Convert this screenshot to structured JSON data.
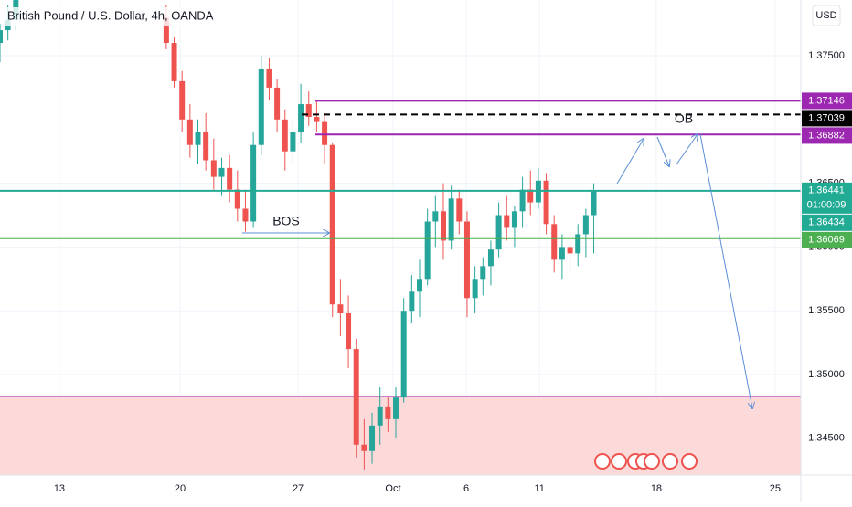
{
  "chart_data": {
    "type": "candlestick",
    "title": "British Pound / U.S. Dollar, 4h, OANDA",
    "currency": "USD",
    "annotations": [
      "BOS",
      "OB"
    ],
    "up_color": "#26a69a",
    "down_color": "#ef5350",
    "grid": true,
    "x": [
      0,
      2,
      4,
      42,
      44,
      46,
      48,
      50,
      52,
      54,
      56,
      58,
      60,
      62,
      64,
      66,
      68,
      70,
      72,
      74,
      76,
      78,
      80,
      82,
      84,
      86,
      88,
      90,
      92,
      94,
      96,
      98,
      100,
      102,
      104,
      106,
      108,
      110,
      112,
      114,
      116,
      118,
      120,
      122,
      124,
      126,
      128,
      130,
      132,
      134,
      136,
      138,
      140,
      142,
      144,
      146,
      148,
      150
    ],
    "open": [
      1.376,
      1.377,
      1.3778,
      1.378,
      1.376,
      1.373,
      1.37,
      1.368,
      1.369,
      1.3668,
      1.3655,
      1.3662,
      1.3645,
      1.363,
      1.362,
      1.368,
      1.374,
      1.3725,
      1.37,
      1.3675,
      1.369,
      1.3712,
      1.3702,
      1.3698,
      1.368,
      1.3555,
      1.3548,
      1.352,
      1.3445,
      1.344,
      1.346,
      1.3475,
      1.3465,
      1.3482,
      1.355,
      1.3565,
      1.3575,
      1.362,
      1.3628,
      1.3605,
      1.3638,
      1.362,
      1.356,
      1.3575,
      1.3585,
      1.3598,
      1.3625,
      1.3615,
      1.3628,
      1.3645,
      1.3635,
      1.3652,
      1.3618,
      1.359,
      1.36,
      1.3595,
      1.361,
      1.3625
    ],
    "high": [
      1.3775,
      1.379,
      1.38,
      1.379,
      1.3765,
      1.3738,
      1.3712,
      1.37,
      1.3705,
      1.3685,
      1.367,
      1.3672,
      1.366,
      1.3645,
      1.369,
      1.375,
      1.3748,
      1.3732,
      1.3708,
      1.37,
      1.3728,
      1.3722,
      1.3714,
      1.3705,
      1.3682,
      1.3575,
      1.3562,
      1.3528,
      1.3465,
      1.347,
      1.349,
      1.3482,
      1.349,
      1.356,
      1.3578,
      1.359,
      1.363,
      1.364,
      1.365,
      1.3648,
      1.3645,
      1.3628,
      1.3585,
      1.3592,
      1.3605,
      1.3635,
      1.364,
      1.3632,
      1.3655,
      1.366,
      1.3662,
      1.3658,
      1.3625,
      1.361,
      1.3612,
      1.3618,
      1.363,
      1.365
    ],
    "low": [
      1.3745,
      1.3762,
      1.377,
      1.3755,
      1.3725,
      1.369,
      1.367,
      1.3665,
      1.366,
      1.3645,
      1.364,
      1.3635,
      1.362,
      1.3612,
      1.3615,
      1.3672,
      1.3715,
      1.369,
      1.366,
      1.3665,
      1.3682,
      1.3695,
      1.369,
      1.3665,
      1.3545,
      1.353,
      1.3505,
      1.3435,
      1.3425,
      1.343,
      1.3445,
      1.3455,
      1.345,
      1.3478,
      1.354,
      1.3545,
      1.357,
      1.36,
      1.359,
      1.3598,
      1.361,
      1.3545,
      1.3548,
      1.3562,
      1.357,
      1.3592,
      1.3605,
      1.36,
      1.3615,
      1.3625,
      1.363,
      1.361,
      1.358,
      1.3575,
      1.358,
      1.3585,
      1.3592,
      1.3595
    ],
    "close": [
      1.377,
      1.3778,
      1.3795,
      1.376,
      1.373,
      1.37,
      1.368,
      1.369,
      1.3668,
      1.3655,
      1.3662,
      1.3645,
      1.363,
      1.362,
      1.368,
      1.374,
      1.3725,
      1.37,
      1.3675,
      1.369,
      1.3712,
      1.3702,
      1.3698,
      1.368,
      1.3555,
      1.3548,
      1.352,
      1.3445,
      1.344,
      1.346,
      1.3475,
      1.3465,
      1.3482,
      1.355,
      1.3565,
      1.3575,
      1.362,
      1.3628,
      1.3605,
      1.3638,
      1.362,
      1.356,
      1.3575,
      1.3585,
      1.3598,
      1.3625,
      1.3615,
      1.3628,
      1.3645,
      1.3635,
      1.3652,
      1.3618,
      1.359,
      1.36,
      1.3595,
      1.361,
      1.3625,
      1.36441
    ],
    "xlim": [
      0,
      202.3
    ],
    "xticks": [
      {
        "value": 15,
        "label": "13"
      },
      {
        "value": 45.5,
        "label": "20"
      },
      {
        "value": 75.3,
        "label": "27"
      },
      {
        "value": 99.3,
        "label": "Oct"
      },
      {
        "value": 117.8,
        "label": "6"
      },
      {
        "value": 136.3,
        "label": "11"
      },
      {
        "value": 165.8,
        "label": "18"
      },
      {
        "value": 195.8,
        "label": "25"
      }
    ],
    "ylim": [
      1.34212,
      1.37937
    ],
    "yticks": [
      {
        "value": 1.375,
        "label": "1.37500"
      },
      {
        "value": 1.365,
        "label": "1.36500"
      },
      {
        "value": 1.36,
        "label": "1.36000"
      },
      {
        "value": 1.355,
        "label": "1.35500"
      },
      {
        "value": 1.35,
        "label": "1.35000"
      },
      {
        "value": 1.345,
        "label": "1.34500"
      }
    ],
    "levels": [
      {
        "value": 1.37146,
        "color": "#9c27b0",
        "line": "solid"
      },
      {
        "value": 1.37039,
        "color": "#000000",
        "line": "dashed"
      },
      {
        "value": 1.36882,
        "color": "#9c27b0",
        "line": "solid"
      },
      {
        "value": 1.36441,
        "color": "#22ab94",
        "line": "solid",
        "countdown": "01:00:09"
      },
      {
        "value": 1.36434,
        "color": "#22ab94"
      },
      {
        "value": 1.36069,
        "color": "#4caf50",
        "line": "solid"
      }
    ],
    "zone": {
      "top": 1.3483,
      "color": "#fcdada",
      "edge": "#9c27b0"
    }
  }
}
